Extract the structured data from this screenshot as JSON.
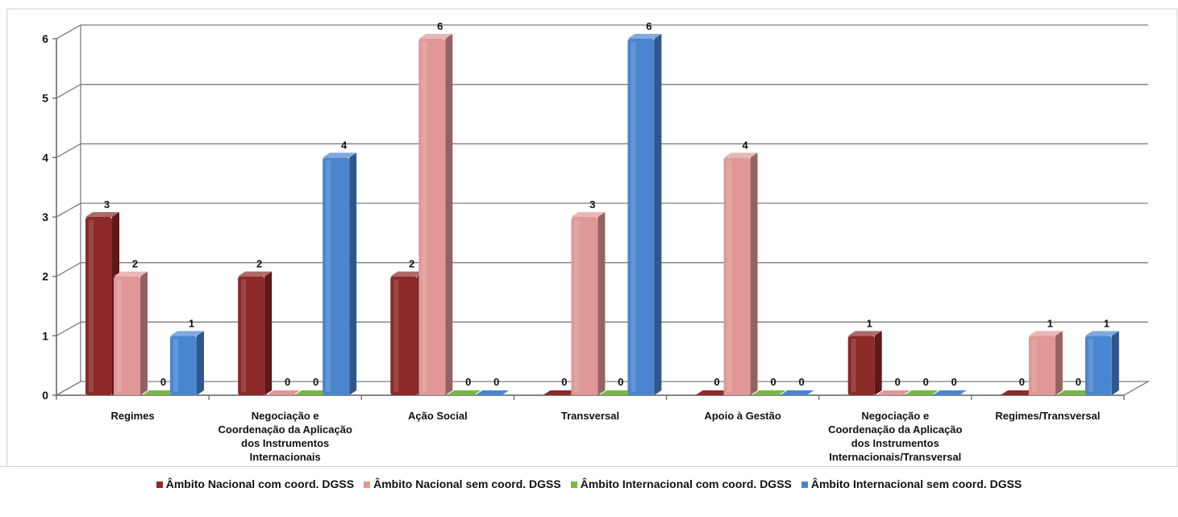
{
  "chart_data": {
    "type": "bar",
    "title": "",
    "xlabel": "",
    "ylabel": "",
    "ylim": [
      0,
      6
    ],
    "yticks": [
      "0",
      "1",
      "2",
      "3",
      "4",
      "5",
      "6"
    ],
    "grid": true,
    "legend_position": "bottom",
    "categories": [
      [
        "Regimes"
      ],
      [
        "Negociação e",
        "Coordenação da Aplicação",
        "dos Instrumentos",
        "Internacionais"
      ],
      [
        "Ação Social"
      ],
      [
        "Transversal"
      ],
      [
        "Apoio à Gestão"
      ],
      [
        "Negociação e",
        "Coordenação da Aplicação",
        "dos Instrumentos",
        "Internacionais/Transversal"
      ],
      [
        "Regimes/Transversal"
      ]
    ],
    "series": [
      {
        "name": "Âmbito Nacional com coord. DGSS",
        "color": "#8b2a28",
        "values": [
          3,
          2,
          2,
          0,
          0,
          1,
          0
        ]
      },
      {
        "name": "Âmbito Nacional sem coord. DGSS",
        "color": "#e09896",
        "values": [
          2,
          0,
          6,
          3,
          4,
          0,
          1
        ]
      },
      {
        "name": "Âmbito Internacional com coord. DGSS",
        "color": "#7ab648",
        "values": [
          0,
          0,
          0,
          0,
          0,
          0,
          0
        ]
      },
      {
        "name": "Âmbito Internacional sem coord. DGSS",
        "color": "#4a86d0",
        "values": [
          1,
          4,
          0,
          6,
          0,
          0,
          1
        ]
      }
    ]
  }
}
